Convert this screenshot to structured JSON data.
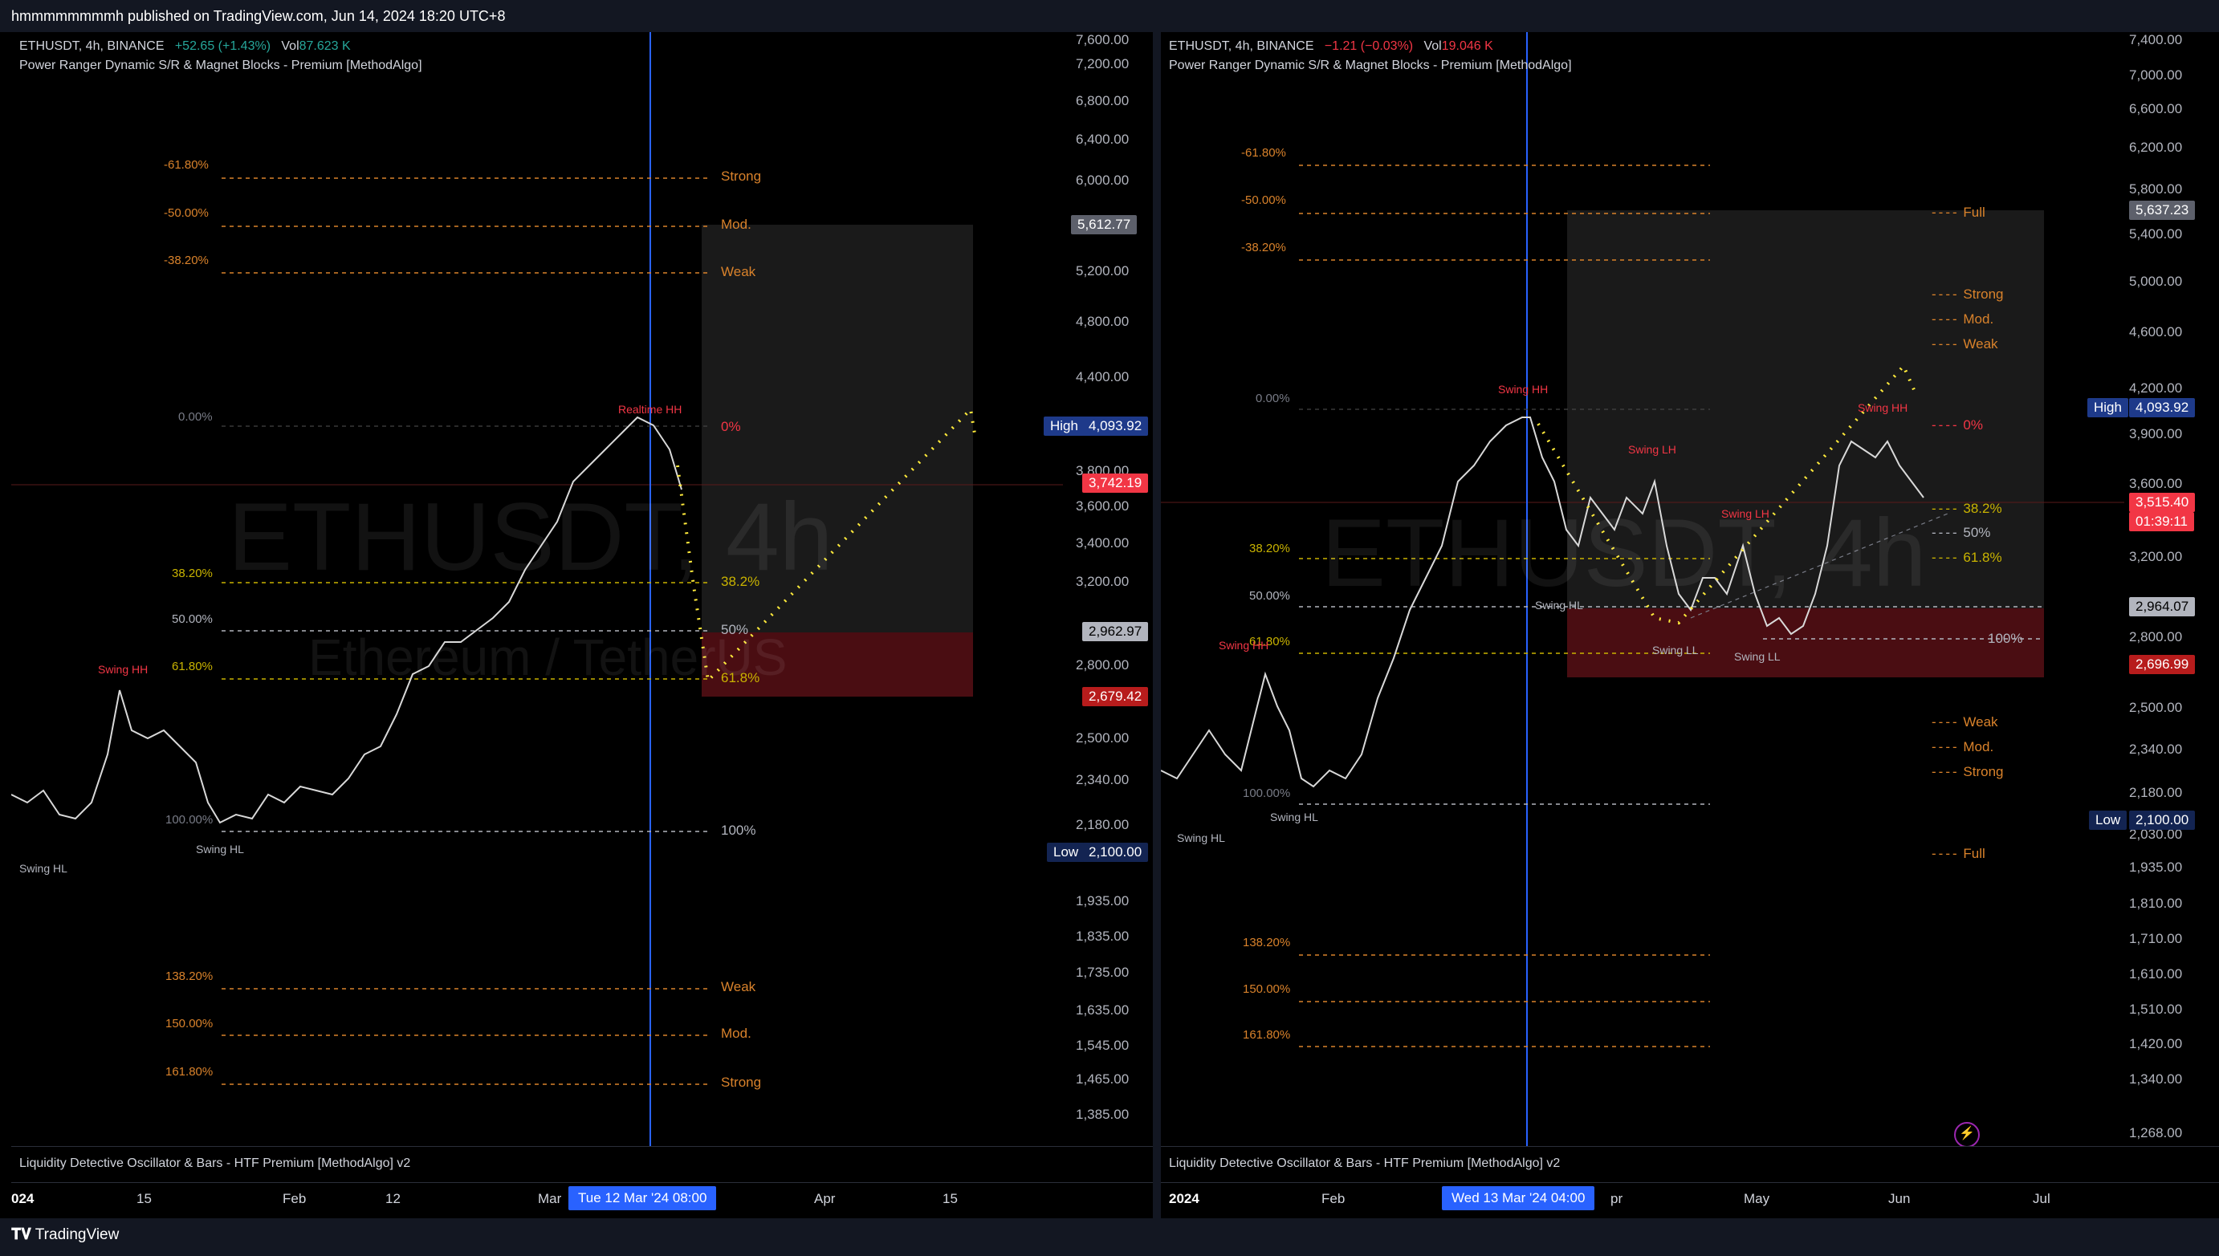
{
  "header": {
    "published": "hmmmmmmmmh published on TradingView.com, Jun 14, 2024 18:20 UTC+8"
  },
  "footer": {
    "brand": "TradingView"
  },
  "colors": {
    "accent": "#2962ff",
    "up": "#26a69a",
    "down": "#f23645",
    "fib_orange": "#d9822b",
    "fib_yellow": "#c9b300",
    "zone_red": "#4a0d12",
    "zone_grey": "#1a1a1a"
  },
  "left": {
    "symbol": "ETHUSDT, 4h, BINANCE",
    "change": "+52.65 (+1.43%)",
    "vol_label": "Vol",
    "vol": "87.623 K",
    "indicator": "Power Ranger Dynamic S/R & Magnet Blocks - Premium [MethodAlgo]",
    "oscillator": "Liquidity Detective Oscillator & Bars - HTF Premium [MethodAlgo] v2",
    "watermark": "ETHUSDT, 4h",
    "watermark2": "Ethereum / TetherUS",
    "price_labels": [
      "7,600.00",
      "7,200.00",
      "6,800.00",
      "6,400.00",
      "6,000.00",
      "5,200.00",
      "4,800.00",
      "4,400.00",
      "3,800.00",
      "3,600.00",
      "3,400.00",
      "3,200.00",
      "2,800.00",
      "2,500.00",
      "2,340.00",
      "2,180.00",
      "1,935.00",
      "1,835.00",
      "1,735.00",
      "1,635.00",
      "1,545.00",
      "1,465.00",
      "1,385.00"
    ],
    "chips": {
      "top": "5,612.77",
      "high_label": "High",
      "high": "4,093.92",
      "last": "3,742.19",
      "mid": "2,962.97",
      "bottom": "2,679.42",
      "low_label": "Low",
      "low": "2,100.00"
    },
    "fib_left": [
      "-61.80%",
      "-50.00%",
      "-38.20%",
      "0.00%",
      "38.20%",
      "50.00%",
      "61.80%",
      "100.00%",
      "138.20%",
      "150.00%",
      "161.80%"
    ],
    "fib_right": [
      "Strong",
      "Mod.",
      "Weak",
      "0%",
      "38.2%",
      "50%",
      "61.8%",
      "100%",
      "Weak",
      "Mod.",
      "Strong"
    ],
    "swings": [
      "Realtime HH",
      "Swing HH",
      "Swing HL",
      "Swing HL"
    ],
    "time_ticks": [
      "024",
      "15",
      "Feb",
      "12",
      "Mar",
      "Apr",
      "15"
    ],
    "time_chip": "Tue 12 Mar '24   08:00"
  },
  "right": {
    "symbol": "ETHUSDT, 4h, BINANCE",
    "change": "−1.21 (−0.03%)",
    "vol_label": "Vol",
    "vol": "19.046 K",
    "indicator": "Power Ranger Dynamic S/R & Magnet Blocks - Premium [MethodAlgo]",
    "oscillator": "Liquidity Detective Oscillator & Bars - HTF Premium [MethodAlgo] v2",
    "watermark": "ETHUSDT, 4h",
    "price_labels": [
      "7,400.00",
      "7,000.00",
      "6,600.00",
      "6,200.00",
      "5,800.00",
      "5,400.00",
      "5,000.00",
      "4,600.00",
      "4,200.00",
      "3,900.00",
      "3,600.00",
      "3,200.00",
      "2,800.00",
      "2,500.00",
      "2,340.00",
      "2,180.00",
      "2,030.00",
      "1,935.00",
      "1,810.00",
      "1,710.00",
      "1,610.00",
      "1,510.00",
      "1,420.00",
      "1,340.00",
      "1,268.00"
    ],
    "chips": {
      "top": "5,637.23",
      "high_label": "High",
      "high": "4,093.92",
      "last": "3,515.40",
      "countdown": "01:39:11",
      "mid": "2,964.07",
      "bottom": "2,696.99",
      "low_label": "Low",
      "low": "2,100.00"
    },
    "fib_left": [
      "-61.80%",
      "-50.00%",
      "-38.20%",
      "0.00%",
      "38.20%",
      "50.00%",
      "61.80%",
      "100.00%",
      "138.20%",
      "150.00%",
      "161.80%"
    ],
    "fib_right": [
      "Full",
      "Strong",
      "Mod.",
      "Weak",
      "0%",
      "38.2%",
      "50%",
      "61.8%",
      "100%",
      "Weak",
      "Mod.",
      "Strong",
      "Full"
    ],
    "swings": [
      "Swing HH",
      "Swing LH",
      "Swing LH",
      "Swing HH",
      "Swing HL",
      "Swing LL",
      "Swing LL",
      "Swing HH",
      "Swing HL",
      "Swing HL"
    ],
    "time_ticks": [
      "2024",
      "Feb",
      "pr",
      "May",
      "Jun",
      "Jul"
    ],
    "time_chip": "Wed 13 Mar '24   04:00"
  }
}
